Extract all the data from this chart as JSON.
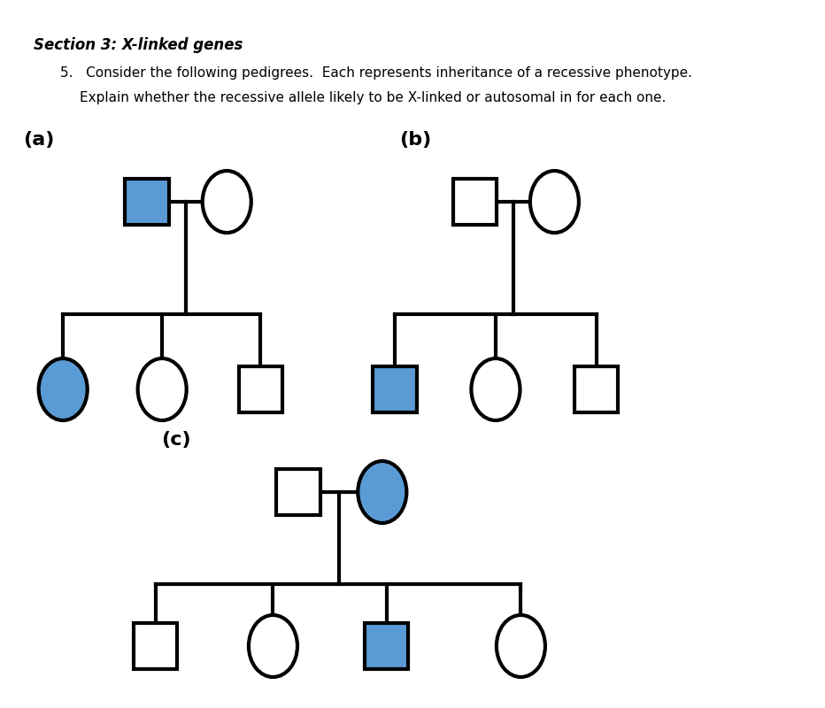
{
  "background_color": "#ffffff",
  "title_text": "Section 3: X-linked genes",
  "blue_fill": "#5b9bd5",
  "white_fill": "#ffffff",
  "line_color": "#000000",
  "label_a": "(a)",
  "label_b": "(b)",
  "label_c": "(c)",
  "lw": 3.0,
  "sq": 0.07,
  "cw": 0.075,
  "ch": 0.095
}
